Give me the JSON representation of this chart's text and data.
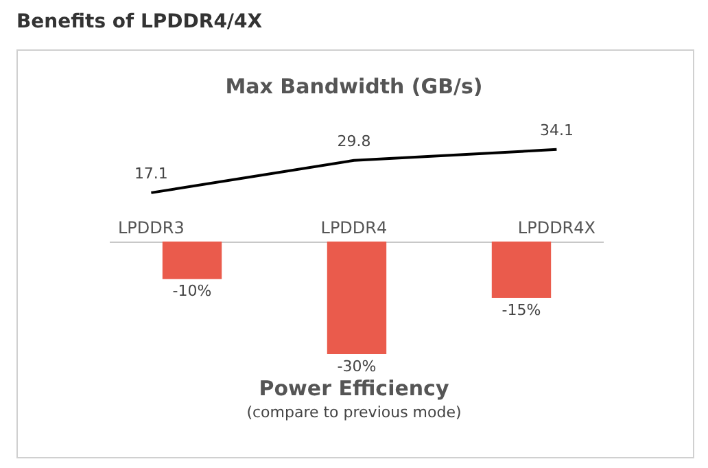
{
  "chart_data": [
    {
      "type": "line",
      "title": "Max Bandwidth (GB/s)",
      "annotations": [
        "Benefits of LPDDR4/4X"
      ],
      "categories": [
        "LPDDR3",
        "LPDDR4",
        "LPDDR4X"
      ],
      "values": [
        17.1,
        29.8,
        34.1
      ],
      "color": "#000000",
      "data_labels": true,
      "tick_labels": "x",
      "marker": "none",
      "grid": false,
      "legend": false
    },
    {
      "type": "bar",
      "title": "Power Efficiency",
      "subtitle": "(compare to previous mode)",
      "categories": [
        null,
        null,
        null
      ],
      "values": [
        -10,
        -30,
        -15
      ],
      "value_labels": [
        "-10%",
        "-30%",
        "-15%"
      ],
      "color": "#ea5b4c",
      "tick_labels": false,
      "grid": false,
      "legend": false
    }
  ]
}
